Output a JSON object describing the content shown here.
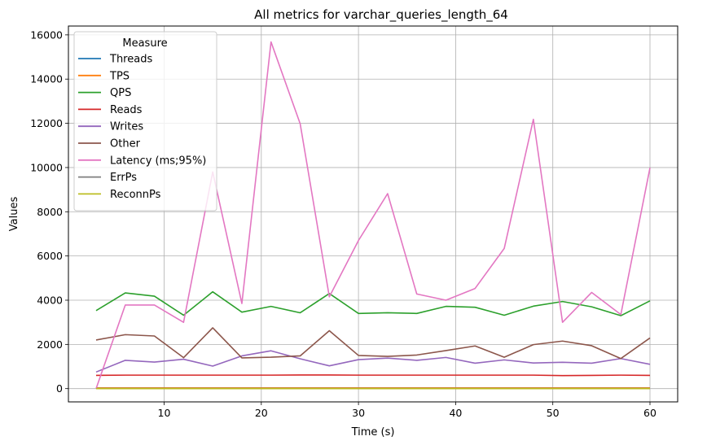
{
  "chart_data": {
    "type": "line",
    "title": "All metrics for varchar_queries_length_64",
    "xlabel": "Time (s)",
    "ylabel": "Values",
    "xlim": [
      0.15,
      62.85
    ],
    "ylim": [
      -600,
      16400
    ],
    "xticks": [
      10,
      20,
      30,
      40,
      50,
      60
    ],
    "yticks": [
      0,
      2000,
      4000,
      6000,
      8000,
      10000,
      12000,
      14000,
      16000
    ],
    "grid": true,
    "legend_title": "Measure",
    "legend_position": "upper-left",
    "x": [
      3,
      6,
      9,
      12,
      15,
      18,
      21,
      24,
      27,
      30,
      33,
      36,
      39,
      42,
      45,
      48,
      51,
      54,
      57,
      60
    ],
    "series": [
      {
        "name": "Threads",
        "color": "#1f77b4",
        "values": [
          32,
          32,
          32,
          32,
          32,
          32,
          32,
          32,
          32,
          32,
          32,
          32,
          32,
          32,
          32,
          32,
          32,
          32,
          32,
          32
        ]
      },
      {
        "name": "TPS",
        "color": "#ff7f0e",
        "values": [
          30,
          30,
          30,
          30,
          30,
          30,
          30,
          30,
          30,
          30,
          30,
          30,
          30,
          30,
          30,
          30,
          30,
          30,
          30,
          30
        ]
      },
      {
        "name": "QPS",
        "color": "#2ca02c",
        "values": [
          3530,
          4330,
          4180,
          3320,
          4380,
          3460,
          3720,
          3430,
          4300,
          3400,
          3430,
          3400,
          3720,
          3680,
          3320,
          3730,
          3940,
          3700,
          3300,
          3970
        ]
      },
      {
        "name": "Reads",
        "color": "#d62728",
        "values": [
          600,
          610,
          610,
          610,
          610,
          610,
          610,
          615,
          615,
          610,
          610,
          610,
          610,
          610,
          610,
          610,
          590,
          600,
          610,
          600
        ]
      },
      {
        "name": "Writes",
        "color": "#9467bd",
        "values": [
          750,
          1280,
          1200,
          1330,
          1020,
          1480,
          1710,
          1350,
          1030,
          1310,
          1380,
          1280,
          1410,
          1150,
          1300,
          1160,
          1190,
          1150,
          1360,
          1100
        ]
      },
      {
        "name": "Other",
        "color": "#8c564b",
        "values": [
          2200,
          2440,
          2380,
          1400,
          2750,
          1390,
          1420,
          1480,
          2620,
          1500,
          1460,
          1520,
          1720,
          1930,
          1420,
          1990,
          2150,
          1940,
          1360,
          2290
        ]
      },
      {
        "name": "Latency (ms;95%)",
        "color": "#e377c2",
        "values": [
          0,
          3780,
          3780,
          3000,
          9800,
          3850,
          15680,
          11980,
          4150,
          6700,
          8820,
          4280,
          4000,
          4530,
          6340,
          12180,
          3000,
          4350,
          3350,
          9990
        ]
      },
      {
        "name": "ErrPs",
        "color": "#7f7f7f",
        "values": [
          0,
          0,
          0,
          0,
          0,
          0,
          0,
          0,
          0,
          0,
          0,
          0,
          0,
          0,
          0,
          0,
          0,
          0,
          0,
          0
        ]
      },
      {
        "name": "ReconnPs",
        "color": "#bcbd22",
        "values": [
          0,
          0,
          0,
          0,
          0,
          0,
          0,
          0,
          0,
          0,
          0,
          0,
          0,
          0,
          0,
          0,
          0,
          0,
          0,
          0
        ]
      }
    ]
  }
}
